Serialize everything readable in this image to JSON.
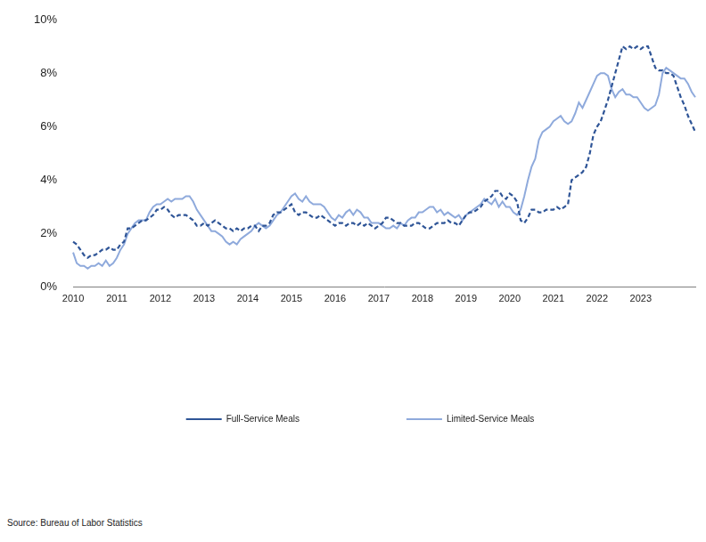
{
  "chart_data": {
    "type": "line",
    "source": "Source: Bureau of Labor Statistics",
    "categories": [
      "2010",
      null,
      null,
      null,
      null,
      null,
      null,
      null,
      null,
      null,
      null,
      null,
      "2011",
      null,
      null,
      null,
      null,
      null,
      null,
      null,
      null,
      null,
      null,
      null,
      "2012",
      null,
      null,
      null,
      null,
      null,
      null,
      null,
      null,
      null,
      null,
      null,
      "2013",
      null,
      null,
      null,
      null,
      null,
      null,
      null,
      null,
      null,
      null,
      null,
      "2014",
      null,
      null,
      null,
      null,
      null,
      null,
      null,
      null,
      null,
      null,
      null,
      "2015",
      null,
      null,
      null,
      null,
      null,
      null,
      null,
      null,
      null,
      null,
      null,
      "2016",
      null,
      null,
      null,
      null,
      null,
      null,
      null,
      null,
      null,
      null,
      null,
      "2017",
      null,
      null,
      null,
      null,
      null,
      null,
      null,
      null,
      null,
      null,
      null,
      "2018",
      null,
      null,
      null,
      null,
      null,
      null,
      null,
      null,
      null,
      null,
      null,
      "2019",
      null,
      null,
      null,
      null,
      null,
      null,
      null,
      null,
      null,
      null,
      null,
      "2020",
      null,
      null,
      null,
      null,
      null,
      null,
      null,
      null,
      null,
      null,
      null,
      "2021",
      null,
      null,
      null,
      null,
      null,
      null,
      null,
      null,
      null,
      null,
      null,
      "2022",
      null,
      null,
      null,
      null,
      null,
      null,
      null,
      null,
      null,
      null,
      null,
      "2023",
      null,
      null,
      null,
      null,
      null,
      null,
      null,
      null,
      null,
      null,
      null,
      null,
      null,
      null,
      null
    ],
    "series": [
      {
        "name": "Full-Service Meals",
        "color": "#2f5597",
        "line_style": "dashed",
        "marker": "none",
        "values": [
          1.7,
          1.6,
          1.4,
          1.2,
          1.1,
          1.2,
          1.2,
          1.3,
          1.4,
          1.4,
          1.5,
          1.4,
          1.4,
          1.6,
          1.7,
          2.2,
          2.2,
          2.3,
          2.4,
          2.5,
          2.5,
          2.6,
          2.7,
          2.9,
          2.9,
          3.0,
          2.9,
          2.7,
          2.6,
          2.7,
          2.7,
          2.7,
          2.6,
          2.5,
          2.3,
          2.3,
          2.4,
          2.3,
          2.4,
          2.5,
          2.4,
          2.3,
          2.2,
          2.2,
          2.1,
          2.2,
          2.1,
          2.2,
          2.2,
          2.3,
          2.3,
          2.1,
          2.3,
          2.3,
          2.4,
          2.7,
          2.8,
          2.8,
          2.9,
          3.0,
          3.1,
          2.8,
          2.7,
          2.8,
          2.8,
          2.7,
          2.6,
          2.6,
          2.7,
          2.6,
          2.5,
          2.4,
          2.3,
          2.4,
          2.4,
          2.3,
          2.4,
          2.4,
          2.3,
          2.4,
          2.3,
          2.4,
          2.3,
          2.2,
          2.3,
          2.4,
          2.6,
          2.6,
          2.5,
          2.4,
          2.4,
          2.3,
          2.3,
          2.3,
          2.4,
          2.4,
          2.3,
          2.2,
          2.2,
          2.3,
          2.4,
          2.4,
          2.4,
          2.5,
          2.4,
          2.4,
          2.3,
          2.5,
          2.7,
          2.8,
          2.8,
          2.9,
          3.0,
          3.2,
          3.3,
          3.4,
          3.6,
          3.6,
          3.4,
          3.3,
          3.5,
          3.4,
          3.2,
          2.5,
          2.4,
          2.6,
          2.9,
          2.9,
          2.8,
          2.8,
          2.9,
          2.9,
          2.9,
          3.0,
          2.9,
          3.0,
          3.1,
          4.0,
          4.1,
          4.2,
          4.3,
          4.5,
          5.0,
          5.7,
          6.0,
          6.2,
          6.6,
          7.0,
          7.5,
          8.0,
          8.5,
          9.0,
          8.9,
          9.0,
          8.9,
          9.0,
          8.9,
          9.0,
          9.0,
          8.6,
          8.2,
          8.1,
          8.1,
          8.0,
          8.0,
          7.9,
          7.5,
          7.1,
          6.8,
          6.4,
          6.1,
          5.8
        ]
      },
      {
        "name": "Limited-Service Meals",
        "color": "#8faadc",
        "line_style": "solid",
        "marker": "none",
        "values": [
          1.3,
          0.9,
          0.8,
          0.8,
          0.7,
          0.8,
          0.8,
          0.9,
          0.8,
          1.0,
          0.8,
          0.9,
          1.1,
          1.4,
          1.6,
          2.0,
          2.2,
          2.4,
          2.5,
          2.5,
          2.5,
          2.8,
          3.0,
          3.1,
          3.1,
          3.2,
          3.3,
          3.2,
          3.3,
          3.3,
          3.3,
          3.4,
          3.4,
          3.2,
          2.9,
          2.7,
          2.5,
          2.3,
          2.1,
          2.1,
          2.0,
          1.9,
          1.7,
          1.6,
          1.7,
          1.6,
          1.8,
          1.9,
          2.0,
          2.1,
          2.3,
          2.4,
          2.3,
          2.2,
          2.3,
          2.5,
          2.7,
          2.8,
          3.0,
          3.2,
          3.4,
          3.5,
          3.3,
          3.2,
          3.4,
          3.2,
          3.1,
          3.1,
          3.1,
          3.0,
          2.8,
          2.6,
          2.5,
          2.7,
          2.6,
          2.8,
          2.9,
          2.7,
          2.9,
          2.8,
          2.6,
          2.6,
          2.4,
          2.4,
          2.4,
          2.3,
          2.2,
          2.2,
          2.3,
          2.2,
          2.4,
          2.3,
          2.5,
          2.6,
          2.6,
          2.8,
          2.8,
          2.9,
          3.0,
          3.0,
          2.8,
          2.9,
          2.7,
          2.8,
          2.7,
          2.6,
          2.7,
          2.5,
          2.7,
          2.8,
          2.9,
          3.0,
          3.1,
          3.3,
          3.2,
          3.1,
          3.3,
          3.0,
          3.2,
          3.0,
          3.0,
          2.8,
          2.7,
          2.9,
          3.4,
          4.0,
          4.5,
          4.8,
          5.5,
          5.8,
          5.9,
          6.0,
          6.2,
          6.3,
          6.4,
          6.2,
          6.1,
          6.2,
          6.5,
          6.9,
          6.7,
          7.0,
          7.3,
          7.6,
          7.9,
          8.0,
          8.0,
          7.9,
          7.4,
          7.1,
          7.3,
          7.4,
          7.2,
          7.2,
          7.1,
          7.1,
          6.9,
          6.7,
          6.6,
          6.7,
          6.8,
          7.2,
          8.0,
          8.2,
          8.1,
          8.0,
          7.9,
          7.8,
          7.8,
          7.6,
          7.3,
          7.1
        ]
      }
    ],
    "ylim": [
      0,
      10
    ],
    "yticks": [
      {
        "value": 0,
        "label": "0%"
      },
      {
        "value": 2,
        "label": "2%"
      },
      {
        "value": 4,
        "label": "4%"
      },
      {
        "value": 6,
        "label": "6%"
      },
      {
        "value": 8,
        "label": "8%"
      },
      {
        "value": 10,
        "label": "10%"
      }
    ],
    "grid": false,
    "legend": "bottom"
  }
}
